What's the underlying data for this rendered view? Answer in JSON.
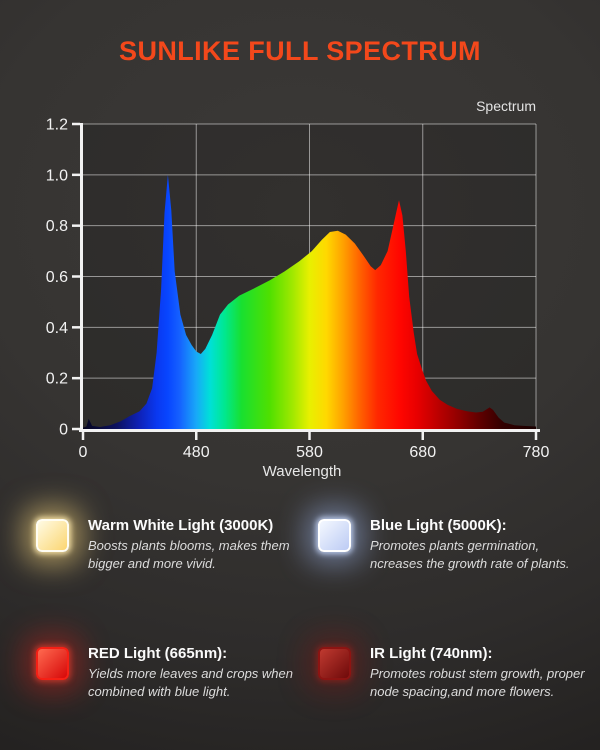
{
  "header": {
    "title": "SUNLIKE FULL SPECTRUM",
    "title_color": "#f3481b"
  },
  "chart_data": {
    "type": "area",
    "title": "Spectrum",
    "xlabel": "Wavelength",
    "ylim": [
      0,
      1.2
    ],
    "grid": true,
    "x_axis_note": "non-linear axis: '0' tick sits at plot origin, then 480/580/680/780 nm equally spaced",
    "x_ticks": [
      {
        "f": 0.0,
        "label": "0"
      },
      {
        "f": 0.25,
        "label": "480"
      },
      {
        "f": 0.5,
        "label": "580"
      },
      {
        "f": 0.75,
        "label": "680"
      },
      {
        "f": 1.0,
        "label": "780"
      }
    ],
    "y_ticks": [
      {
        "v": 0.0,
        "label": "0"
      },
      {
        "v": 0.2,
        "label": "0.2"
      },
      {
        "v": 0.4,
        "label": "0.4"
      },
      {
        "v": 0.6,
        "label": "0.6"
      },
      {
        "v": 0.8,
        "label": "0.8"
      },
      {
        "v": 1.0,
        "label": "1.0"
      },
      {
        "v": 1.2,
        "label": "1.2"
      }
    ],
    "points": [
      [
        380,
        0.005
      ],
      [
        383,
        0.01
      ],
      [
        385,
        0.04
      ],
      [
        388,
        0.012
      ],
      [
        395,
        0.008
      ],
      [
        404,
        0.015
      ],
      [
        413,
        0.03
      ],
      [
        421,
        0.05
      ],
      [
        430,
        0.07
      ],
      [
        436,
        0.1
      ],
      [
        441,
        0.16
      ],
      [
        445,
        0.3
      ],
      [
        449,
        0.55
      ],
      [
        452,
        0.85
      ],
      [
        455,
        1.0
      ],
      [
        458,
        0.86
      ],
      [
        461,
        0.62
      ],
      [
        466,
        0.45
      ],
      [
        471,
        0.37
      ],
      [
        476,
        0.33
      ],
      [
        480,
        0.305
      ],
      [
        484,
        0.295
      ],
      [
        488,
        0.315
      ],
      [
        494,
        0.37
      ],
      [
        501,
        0.45
      ],
      [
        508,
        0.49
      ],
      [
        518,
        0.525
      ],
      [
        532,
        0.555
      ],
      [
        545,
        0.585
      ],
      [
        558,
        0.62
      ],
      [
        571,
        0.66
      ],
      [
        582,
        0.7
      ],
      [
        591,
        0.745
      ],
      [
        598,
        0.775
      ],
      [
        605,
        0.78
      ],
      [
        612,
        0.765
      ],
      [
        620,
        0.73
      ],
      [
        628,
        0.68
      ],
      [
        634,
        0.64
      ],
      [
        638,
        0.625
      ],
      [
        643,
        0.645
      ],
      [
        649,
        0.7
      ],
      [
        653,
        0.78
      ],
      [
        657,
        0.86
      ],
      [
        659,
        0.9
      ],
      [
        662,
        0.84
      ],
      [
        665,
        0.7
      ],
      [
        668,
        0.52
      ],
      [
        672,
        0.38
      ],
      [
        675,
        0.295
      ],
      [
        679,
        0.24
      ],
      [
        683,
        0.19
      ],
      [
        688,
        0.15
      ],
      [
        695,
        0.115
      ],
      [
        702,
        0.095
      ],
      [
        710,
        0.08
      ],
      [
        719,
        0.07
      ],
      [
        727,
        0.065
      ],
      [
        733,
        0.068
      ],
      [
        739,
        0.085
      ],
      [
        742,
        0.075
      ],
      [
        747,
        0.045
      ],
      [
        752,
        0.025
      ],
      [
        761,
        0.015
      ],
      [
        769,
        0.012
      ],
      [
        780,
        0.01
      ]
    ],
    "spectrum_gradient": [
      [
        380,
        "#05051e"
      ],
      [
        410,
        "#0d1260"
      ],
      [
        430,
        "#0e22b8"
      ],
      [
        445,
        "#0a38f0"
      ],
      [
        455,
        "#0846ff"
      ],
      [
        465,
        "#1560ff"
      ],
      [
        480,
        "#18a8f8"
      ],
      [
        492,
        "#00e0d8"
      ],
      [
        505,
        "#00e890"
      ],
      [
        520,
        "#18e030"
      ],
      [
        545,
        "#50e000"
      ],
      [
        565,
        "#a0e800"
      ],
      [
        580,
        "#e8f000"
      ],
      [
        595,
        "#ffd800"
      ],
      [
        610,
        "#ffa000"
      ],
      [
        625,
        "#ff6000"
      ],
      [
        640,
        "#ff2800"
      ],
      [
        660,
        "#ff0600"
      ],
      [
        675,
        "#e80000"
      ],
      [
        690,
        "#c40000"
      ],
      [
        710,
        "#940000"
      ],
      [
        730,
        "#600000"
      ],
      [
        750,
        "#330000"
      ],
      [
        780,
        "#1a0000"
      ]
    ]
  },
  "legend": {
    "items": [
      {
        "title": "Warm White Light (3000K)",
        "description": "Boosts plants blooms, makes them bigger and more vivid.",
        "led": {
          "c1": "#fffbe4",
          "c2": "#fbd571",
          "bd": "#fffdf2",
          "glow": "rgba(255,221,128,0.55)",
          "glow2": "rgba(255,244,205,0.9)"
        }
      },
      {
        "title": "Blue Light (5000K):",
        "description": "Promotes plants germination, ncreases the growth rate of plants.",
        "led": {
          "c1": "#f4f8ff",
          "c2": "#bccbf4",
          "bd": "#ffffff",
          "glow": "rgba(168,195,255,0.45)",
          "glow2": "rgba(220,232,255,0.85)"
        }
      },
      {
        "title": "RED Light (665nm):",
        "description": "Yields more leaves and crops when combined with blue light.",
        "led": {
          "c1": "#ff6a50",
          "c2": "#d60808",
          "bd": "#f52015",
          "glow": "rgba(255,32,24,0.34)",
          "glow2": "rgba(255,80,60,0.55)"
        }
      },
      {
        "title": "IR Light (740nm):",
        "description": "Promotes robust stem growth, proper node spacing,and more flowers.",
        "led": {
          "c1": "#c03a30",
          "c2": "#6e0a0a",
          "bd": "#8d1412",
          "glow": "rgba(150,18,14,0.32)",
          "glow2": "rgba(190,40,32,0.45)"
        }
      }
    ]
  }
}
